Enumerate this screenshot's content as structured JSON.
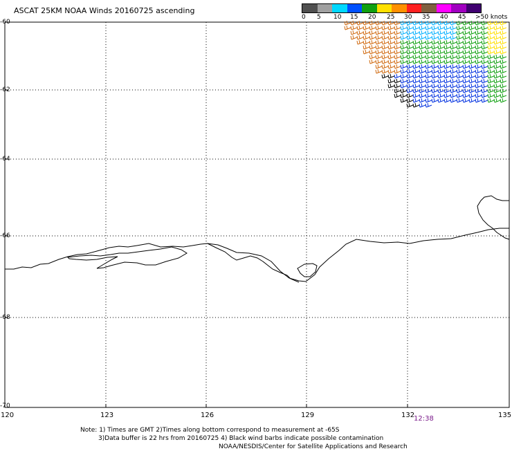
{
  "title": "ASCAT 25KM NOAA Winds 20160725 ascending",
  "legend": {
    "labels": [
      "0",
      "5",
      "10",
      "15",
      "20",
      "25",
      "30",
      "35",
      "40",
      "45",
      ">50 knots"
    ],
    "colors": [
      "#505050",
      "#a0a0a0",
      "#00d8ff",
      "#0050ff",
      "#10a010",
      "#ffe000",
      "#ff9000",
      "#ff2020",
      "#806040",
      "#ff00ff",
      "#a000c0",
      "#400070"
    ]
  },
  "axes": {
    "lat_labels": [
      "-60",
      "-62",
      "-64",
      "-66",
      "-68",
      "-70"
    ],
    "lon_labels": [
      "120",
      "123",
      "126",
      "129",
      "132",
      "135"
    ]
  },
  "time_label": "12:38",
  "notes": [
    "Note: 1) Times are GMT 2)Times along bottom correspond to measurement at -65S",
    "3)Data buffer is 22 hrs from 20160725 4) Black wind barbs indicate possible contamination",
    "NOAA/NESDIS/Center for Satellite Applications and Research"
  ]
}
